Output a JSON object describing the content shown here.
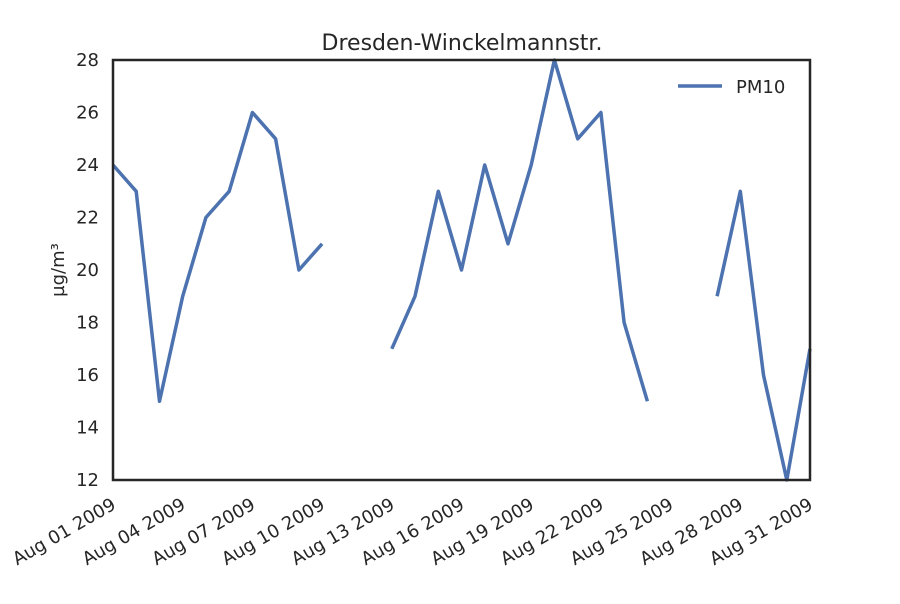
{
  "chart_data": {
    "type": "line",
    "title": "Dresden-Winckelmannstr.",
    "xlabel": "",
    "ylabel": "µg/m³",
    "ylim": [
      12,
      28
    ],
    "xlim": [
      "2009-08-01",
      "2009-08-31"
    ],
    "grid": false,
    "legend_position": "top-right",
    "y_ticks": [
      12,
      14,
      16,
      18,
      20,
      22,
      24,
      26,
      28
    ],
    "x_ticks": [
      {
        "date": "2009-08-01",
        "label": "Aug 01 2009"
      },
      {
        "date": "2009-08-04",
        "label": "Aug 04 2009"
      },
      {
        "date": "2009-08-07",
        "label": "Aug 07 2009"
      },
      {
        "date": "2009-08-10",
        "label": "Aug 10 2009"
      },
      {
        "date": "2009-08-13",
        "label": "Aug 13 2009"
      },
      {
        "date": "2009-08-16",
        "label": "Aug 16 2009"
      },
      {
        "date": "2009-08-19",
        "label": "Aug 19 2009"
      },
      {
        "date": "2009-08-22",
        "label": "Aug 22 2009"
      },
      {
        "date": "2009-08-25",
        "label": "Aug 25 2009"
      },
      {
        "date": "2009-08-28",
        "label": "Aug 28 2009"
      },
      {
        "date": "2009-08-31",
        "label": "Aug 31 2009"
      }
    ],
    "series": [
      {
        "name": "PM10",
        "color": "#4C72B0",
        "points": [
          {
            "x": "2009-08-01",
            "y": 24
          },
          {
            "x": "2009-08-02",
            "y": 23
          },
          {
            "x": "2009-08-03",
            "y": 15
          },
          {
            "x": "2009-08-04",
            "y": 19
          },
          {
            "x": "2009-08-05",
            "y": 22
          },
          {
            "x": "2009-08-06",
            "y": 23
          },
          {
            "x": "2009-08-07",
            "y": 26
          },
          {
            "x": "2009-08-08",
            "y": 25
          },
          {
            "x": "2009-08-09",
            "y": 20
          },
          {
            "x": "2009-08-10",
            "y": 21
          },
          {
            "x": "2009-08-11",
            "y": null
          },
          {
            "x": "2009-08-12",
            "y": null
          },
          {
            "x": "2009-08-13",
            "y": 17
          },
          {
            "x": "2009-08-14",
            "y": 19
          },
          {
            "x": "2009-08-15",
            "y": 23
          },
          {
            "x": "2009-08-16",
            "y": 20
          },
          {
            "x": "2009-08-17",
            "y": 24
          },
          {
            "x": "2009-08-18",
            "y": 21
          },
          {
            "x": "2009-08-19",
            "y": 24
          },
          {
            "x": "2009-08-20",
            "y": 28
          },
          {
            "x": "2009-08-21",
            "y": 25
          },
          {
            "x": "2009-08-22",
            "y": 26
          },
          {
            "x": "2009-08-23",
            "y": 18
          },
          {
            "x": "2009-08-24",
            "y": 15
          },
          {
            "x": "2009-08-25",
            "y": null
          },
          {
            "x": "2009-08-26",
            "y": null
          },
          {
            "x": "2009-08-27",
            "y": 19
          },
          {
            "x": "2009-08-28",
            "y": 23
          },
          {
            "x": "2009-08-29",
            "y": 16
          },
          {
            "x": "2009-08-30",
            "y": 12
          },
          {
            "x": "2009-08-31",
            "y": 17
          }
        ]
      }
    ]
  }
}
